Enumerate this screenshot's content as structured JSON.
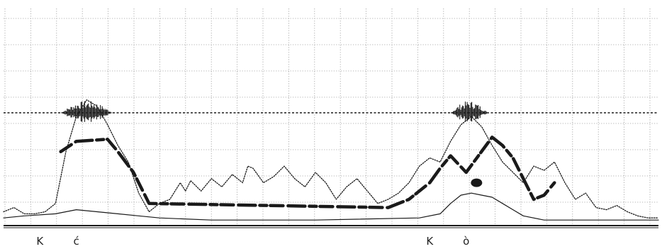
{
  "chart_data": {
    "type": "line",
    "title": "",
    "xlabel": "",
    "ylabel": "",
    "grid": true,
    "legend": "none",
    "colors": {
      "ink": "#1a1a1a",
      "grid": "#9a9a9a",
      "background": "#ffffff"
    },
    "segment_labels": [
      {
        "text": "K",
        "x": 7
      },
      {
        "text": "ć",
        "x": 14
      },
      {
        "text": "K",
        "x": 82
      },
      {
        "text": "ò",
        "x": 89
      }
    ],
    "waveform": {
      "bursts": [
        {
          "start": 11,
          "end": 25
        },
        {
          "start": 86,
          "end": 96
        }
      ]
    },
    "series": [
      {
        "style": "dotted",
        "x": [
          0,
          2,
          4,
          6,
          8,
          10,
          12,
          14,
          16,
          18,
          20,
          22,
          24,
          26,
          28,
          30,
          32,
          34,
          35,
          36,
          38,
          40,
          42,
          44,
          46,
          47,
          48,
          50,
          52,
          54,
          56,
          58,
          60,
          62,
          64,
          66,
          68,
          70,
          72,
          74,
          76,
          78,
          80,
          82,
          84,
          86,
          88,
          90,
          92,
          94,
          96,
          98,
          100,
          102,
          104,
          106,
          108,
          110,
          112,
          114,
          116,
          118,
          120,
          122,
          124,
          126
        ],
        "y": [
          0.06,
          0.08,
          0.05,
          0.05,
          0.06,
          0.1,
          0.35,
          0.52,
          0.6,
          0.57,
          0.48,
          0.38,
          0.3,
          0.15,
          0.06,
          0.1,
          0.12,
          0.2,
          0.16,
          0.21,
          0.16,
          0.22,
          0.18,
          0.24,
          0.2,
          0.28,
          0.27,
          0.2,
          0.23,
          0.28,
          0.22,
          0.18,
          0.25,
          0.2,
          0.12,
          0.18,
          0.22,
          0.16,
          0.1,
          0.12,
          0.15,
          0.2,
          0.28,
          0.32,
          0.3,
          0.4,
          0.48,
          0.52,
          0.47,
          0.38,
          0.3,
          0.25,
          0.2,
          0.28,
          0.26,
          0.3,
          0.2,
          0.12,
          0.15,
          0.08,
          0.07,
          0.09,
          0.06,
          0.04,
          0.03,
          0.03
        ]
      },
      {
        "style": "thick",
        "x": [
          11,
          14,
          20,
          22,
          25,
          28,
          74,
          78,
          80,
          82,
          84,
          86,
          89,
          94,
          96,
          98,
          100,
          102,
          104,
          106
        ],
        "y": [
          0.35,
          0.4,
          0.41,
          0.35,
          0.25,
          0.1,
          0.08,
          0.12,
          0.16,
          0.2,
          0.27,
          0.33,
          0.25,
          0.42,
          0.38,
          0.32,
          0.22,
          0.12,
          0.14,
          0.2
        ]
      },
      {
        "style": "thin",
        "x": [
          0,
          4,
          10,
          14,
          18,
          22,
          26,
          30,
          40,
          60,
          80,
          84,
          86,
          88,
          90,
          92,
          94,
          96,
          98,
          100,
          104,
          110,
          120,
          126
        ],
        "y": [
          0.03,
          0.04,
          0.05,
          0.07,
          0.06,
          0.05,
          0.04,
          0.03,
          0.02,
          0.02,
          0.03,
          0.05,
          0.1,
          0.14,
          0.15,
          0.14,
          0.13,
          0.1,
          0.07,
          0.04,
          0.02,
          0.02,
          0.02,
          0.02
        ]
      }
    ],
    "markers": [
      {
        "x": 91,
        "y": 0.2
      }
    ],
    "xlim": [
      0,
      126
    ],
    "ylim": [
      0,
      1
    ]
  }
}
